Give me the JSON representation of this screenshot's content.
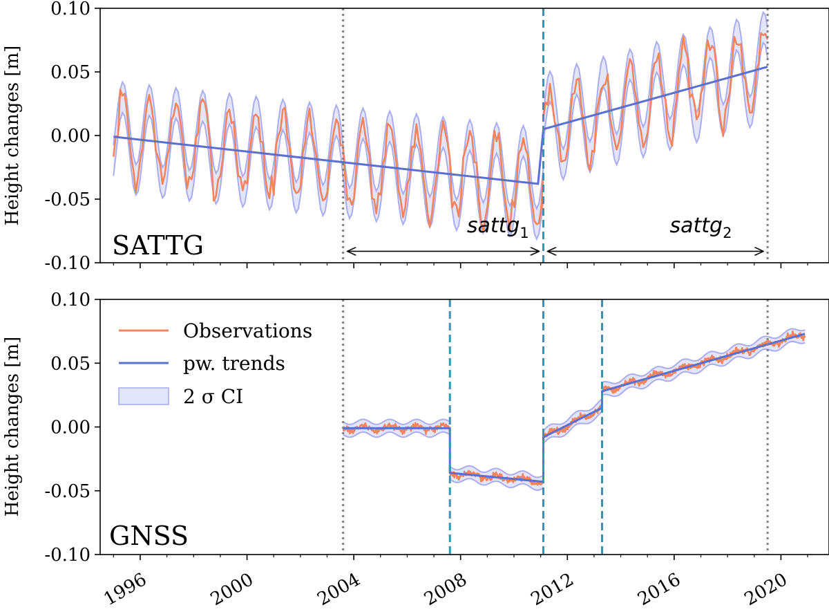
{
  "chart_data": [
    {
      "type": "line",
      "panel_label": "SATTG",
      "ylabel": "Height changes [m]",
      "ylim": [
        -0.1,
        0.1
      ],
      "xlim": [
        1994.5,
        2021.8
      ],
      "yticks": [
        -0.1,
        -0.05,
        0.0,
        0.05,
        0.1
      ],
      "ytick_labels": [
        "-0.10",
        "-0.05",
        "0.00",
        "0.05",
        "0.10"
      ],
      "xticks": [
        1996,
        2000,
        2004,
        2008,
        2012,
        2016,
        2020
      ],
      "series": [
        {
          "name": "Observations",
          "kind": "observations",
          "color": "#f4845b",
          "model": {
            "segments": [
              {
                "x0": 1995.0,
                "x1": 2011.1,
                "y0": -0.001,
                "y1": -0.038
              },
              {
                "x0": 2011.1,
                "x1": 2019.5,
                "y0": 0.005,
                "y1": 0.054
              }
            ],
            "seasonal_amplitude": 0.032,
            "noise": 0.012,
            "step_per_year": 12
          }
        },
        {
          "name": "pw. trends",
          "kind": "trend",
          "color": "#5a6fd1",
          "points": [
            [
              1995.0,
              -0.001
            ],
            [
              2010.9,
              -0.038
            ],
            [
              2011.1,
              0.005
            ],
            [
              2019.5,
              0.054
            ]
          ]
        },
        {
          "name": "2 σ CI",
          "kind": "ci_band",
          "color": "#a9adf0",
          "fill": "#e3e5fb",
          "half_width": 0.012
        }
      ],
      "vlines": [
        {
          "x": 2003.6,
          "style": "dotted",
          "color": "#808080"
        },
        {
          "x": 2011.1,
          "style": "dashed",
          "color": "#3d8fb3"
        },
        {
          "x": 2019.5,
          "style": "dotted",
          "color": "#808080"
        }
      ],
      "annotations": [
        {
          "text": "sattg",
          "sub": "1",
          "x_from": 2003.6,
          "x_to": 2011.1,
          "y": -0.091,
          "label_x": 2009.4,
          "label_y": -0.076
        },
        {
          "text": "sattg",
          "sub": "2",
          "x_from": 2011.1,
          "x_to": 2019.5,
          "y": -0.091,
          "label_x": 2017.0,
          "label_y": -0.076
        }
      ]
    },
    {
      "type": "line",
      "panel_label": "GNSS",
      "ylabel": "Height changes [m]",
      "ylim": [
        -0.1,
        0.1
      ],
      "xlim": [
        1994.5,
        2021.8
      ],
      "yticks": [
        -0.1,
        -0.05,
        0.0,
        0.05,
        0.1
      ],
      "ytick_labels": [
        "-0.10",
        "-0.05",
        "0.00",
        "0.05",
        "0.10"
      ],
      "xticks": [
        1996,
        2000,
        2004,
        2008,
        2012,
        2016,
        2020
      ],
      "xtick_labels": [
        "1996",
        "2000",
        "2004",
        "2008",
        "2012",
        "2016",
        "2020"
      ],
      "series": [
        {
          "name": "Observations",
          "kind": "observations",
          "color": "#f4845b",
          "model": {
            "segments": [
              {
                "x0": 2003.6,
                "x1": 2007.6,
                "y0": -0.001,
                "y1": -0.001
              },
              {
                "x0": 2007.6,
                "x1": 2011.1,
                "y0": -0.036,
                "y1": -0.043
              },
              {
                "x0": 2011.1,
                "x1": 2013.3,
                "y0": -0.008,
                "y1": 0.015
              },
              {
                "x0": 2013.3,
                "x1": 2020.9,
                "y0": 0.028,
                "y1": 0.073
              }
            ],
            "seasonal_amplitude": 0.002,
            "noise": 0.0025,
            "step_per_year": 48
          }
        },
        {
          "name": "pw. trends",
          "kind": "trend",
          "color": "#5a6fd1",
          "points": [
            [
              2003.6,
              -0.001
            ],
            [
              2007.6,
              -0.001
            ],
            [
              2007.6,
              -0.036
            ],
            [
              2011.1,
              -0.043
            ],
            [
              2011.1,
              -0.008
            ],
            [
              2013.3,
              0.015
            ],
            [
              2013.3,
              0.028
            ],
            [
              2020.9,
              0.073
            ]
          ]
        },
        {
          "name": "2 σ CI",
          "kind": "ci_band",
          "color": "#a9adf0",
          "fill": "#e3e5fb",
          "half_width": 0.005
        }
      ],
      "vlines": [
        {
          "x": 2003.6,
          "style": "dotted",
          "color": "#808080"
        },
        {
          "x": 2007.6,
          "style": "dashed",
          "color": "#3d8fb3"
        },
        {
          "x": 2011.1,
          "style": "dashed",
          "color": "#3d8fb3"
        },
        {
          "x": 2013.3,
          "style": "dashed",
          "color": "#3d8fb3"
        },
        {
          "x": 2019.5,
          "style": "dotted",
          "color": "#808080"
        }
      ],
      "legend": {
        "position": "upper-left",
        "entries": [
          {
            "label": "Observations",
            "kind": "line",
            "color": "#f4845b"
          },
          {
            "label": "pw. trends",
            "kind": "line",
            "color": "#5a6fd1"
          },
          {
            "label": "2 σ CI",
            "kind": "patch",
            "color": "#a9adf0",
            "fill": "#e3e5fb"
          }
        ]
      }
    }
  ]
}
